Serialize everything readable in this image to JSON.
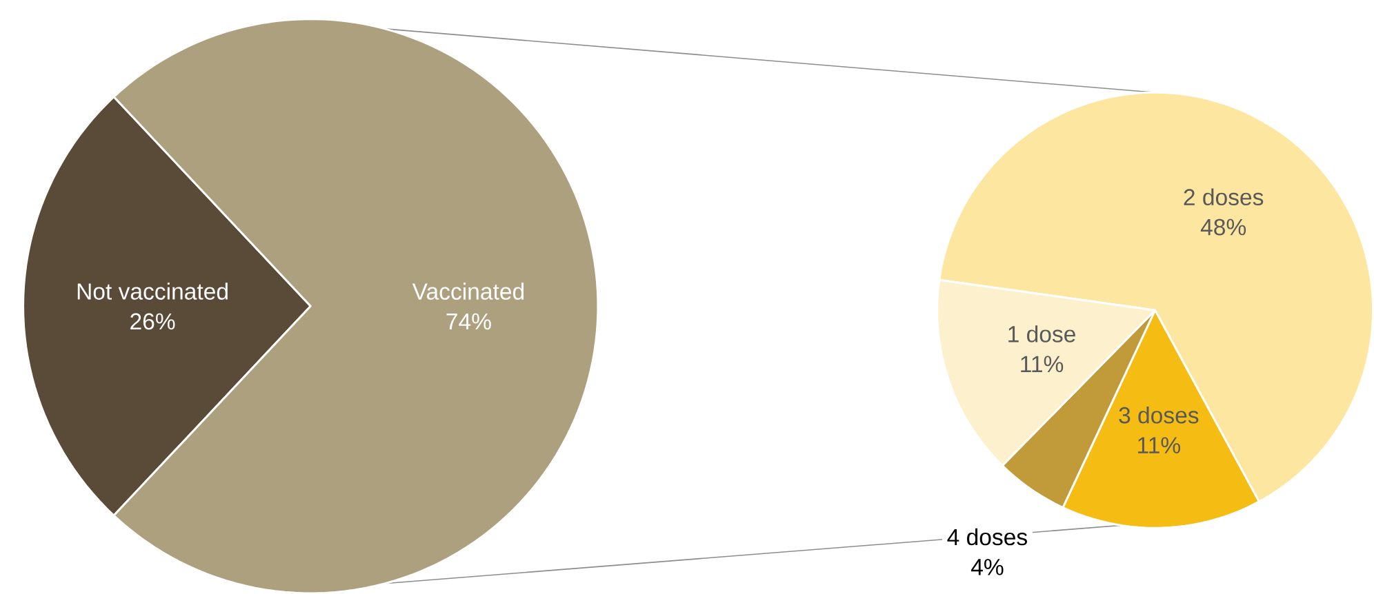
{
  "chart_data": [
    {
      "type": "pie",
      "categories": [
        "Not vaccinated",
        "Vaccinated"
      ],
      "values": [
        26,
        74
      ],
      "value_labels": [
        "26%",
        "74%"
      ],
      "colors": [
        "#5a4a38",
        "#ada07f"
      ]
    },
    {
      "type": "pie",
      "categories": [
        "2 doses",
        "3 doses",
        "4 doses",
        "1 dose"
      ],
      "values": [
        48,
        11,
        4,
        11
      ],
      "value_labels": [
        "48%",
        "11%",
        "4%",
        "11%"
      ],
      "colors": [
        "#fde6a0",
        "#f5bc14",
        "#c19a3a",
        "#fdf0cc"
      ]
    }
  ]
}
